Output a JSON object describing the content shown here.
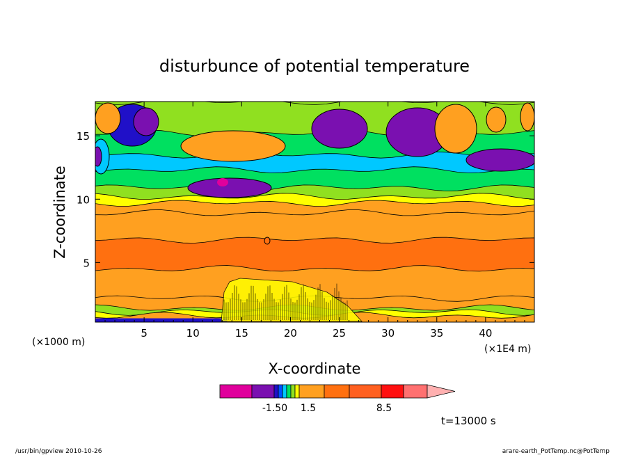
{
  "chart_data": {
    "type": "heatmap",
    "title": "disturbunce of potential temperature",
    "xlabel": "X-coordinate",
    "ylabel": "Z-coordinate",
    "x_unit_label": "(×1000 m)",
    "x_scale_label": "(×1E4 m)",
    "xlim": [
      0,
      45
    ],
    "ylim": [
      0.3,
      17.7
    ],
    "x_ticks": [
      5,
      10,
      15,
      20,
      25,
      30,
      35,
      40
    ],
    "y_ticks": [
      5,
      10,
      15
    ],
    "time_label": "t=13000 s",
    "colorbar": {
      "colors": [
        "#e0009c",
        "#7a10b0",
        "#2010c8",
        "#0050ff",
        "#00c8ff",
        "#00e060",
        "#90e020",
        "#ffff00",
        "#ffa020",
        "#ff7010",
        "#ff6020",
        "#ff1010",
        "#ff7070",
        "#ffb0b0"
      ],
      "tick_labels": [
        "-1.50",
        "1.5",
        "8.5"
      ]
    },
    "bands": [
      {
        "top": 0.8,
        "color": "#ffa020"
      },
      {
        "top": 1.1,
        "color": "#ffff00"
      },
      {
        "top": 1.4,
        "color": "#90e020"
      },
      {
        "top": 2.2,
        "color": "#ffa020"
      },
      {
        "top": 4.5,
        "color": "#ffa020"
      },
      {
        "top": 6.8,
        "color": "#ff7010"
      },
      {
        "top": 8.9,
        "color": "#ffa020"
      },
      {
        "top": 9.7,
        "color": "#ffa020"
      },
      {
        "top": 10.2,
        "color": "#ffff00"
      },
      {
        "top": 10.9,
        "color": "#90e020"
      },
      {
        "top": 12.3,
        "color": "#00e060"
      },
      {
        "top": 13.5,
        "color": "#00c8ff"
      },
      {
        "top": 15.2,
        "color": "#00e060"
      },
      {
        "top": 17.7,
        "color": "#90e020"
      }
    ]
  },
  "footer": {
    "left": "/usr/bin/gpview   2010-10-26",
    "right": "arare-earth_PotTemp.nc@PotTemp"
  }
}
